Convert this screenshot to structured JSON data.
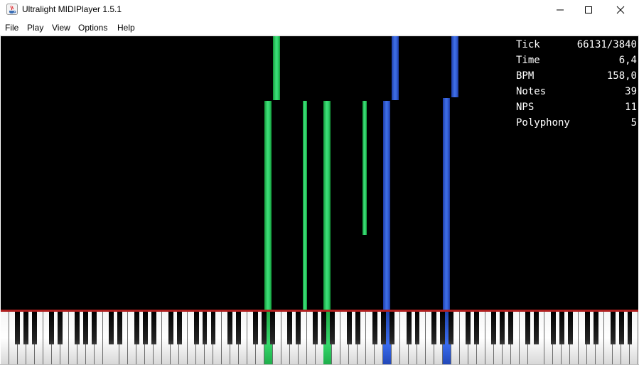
{
  "window": {
    "title": "Ultralight MIDIPlayer 1.5.1",
    "app_icon": "java-icon"
  },
  "menu": [
    "File",
    "Play",
    "View",
    "Options",
    "Help"
  ],
  "stats": [
    {
      "label": "Tick",
      "value": "66131/3840"
    },
    {
      "label": "Time",
      "value": "6,4"
    },
    {
      "label": "BPM",
      "value": "158,0"
    },
    {
      "label": "Notes",
      "value": "39"
    },
    {
      "label": "NPS",
      "value": "11"
    },
    {
      "label": "Polyphony",
      "value": "5"
    }
  ],
  "colors": {
    "track_1": "#2fd06a",
    "track_2": "#3561d8",
    "keyboard_line": "#b01f1f",
    "canvas_bg": "#000000"
  }
}
